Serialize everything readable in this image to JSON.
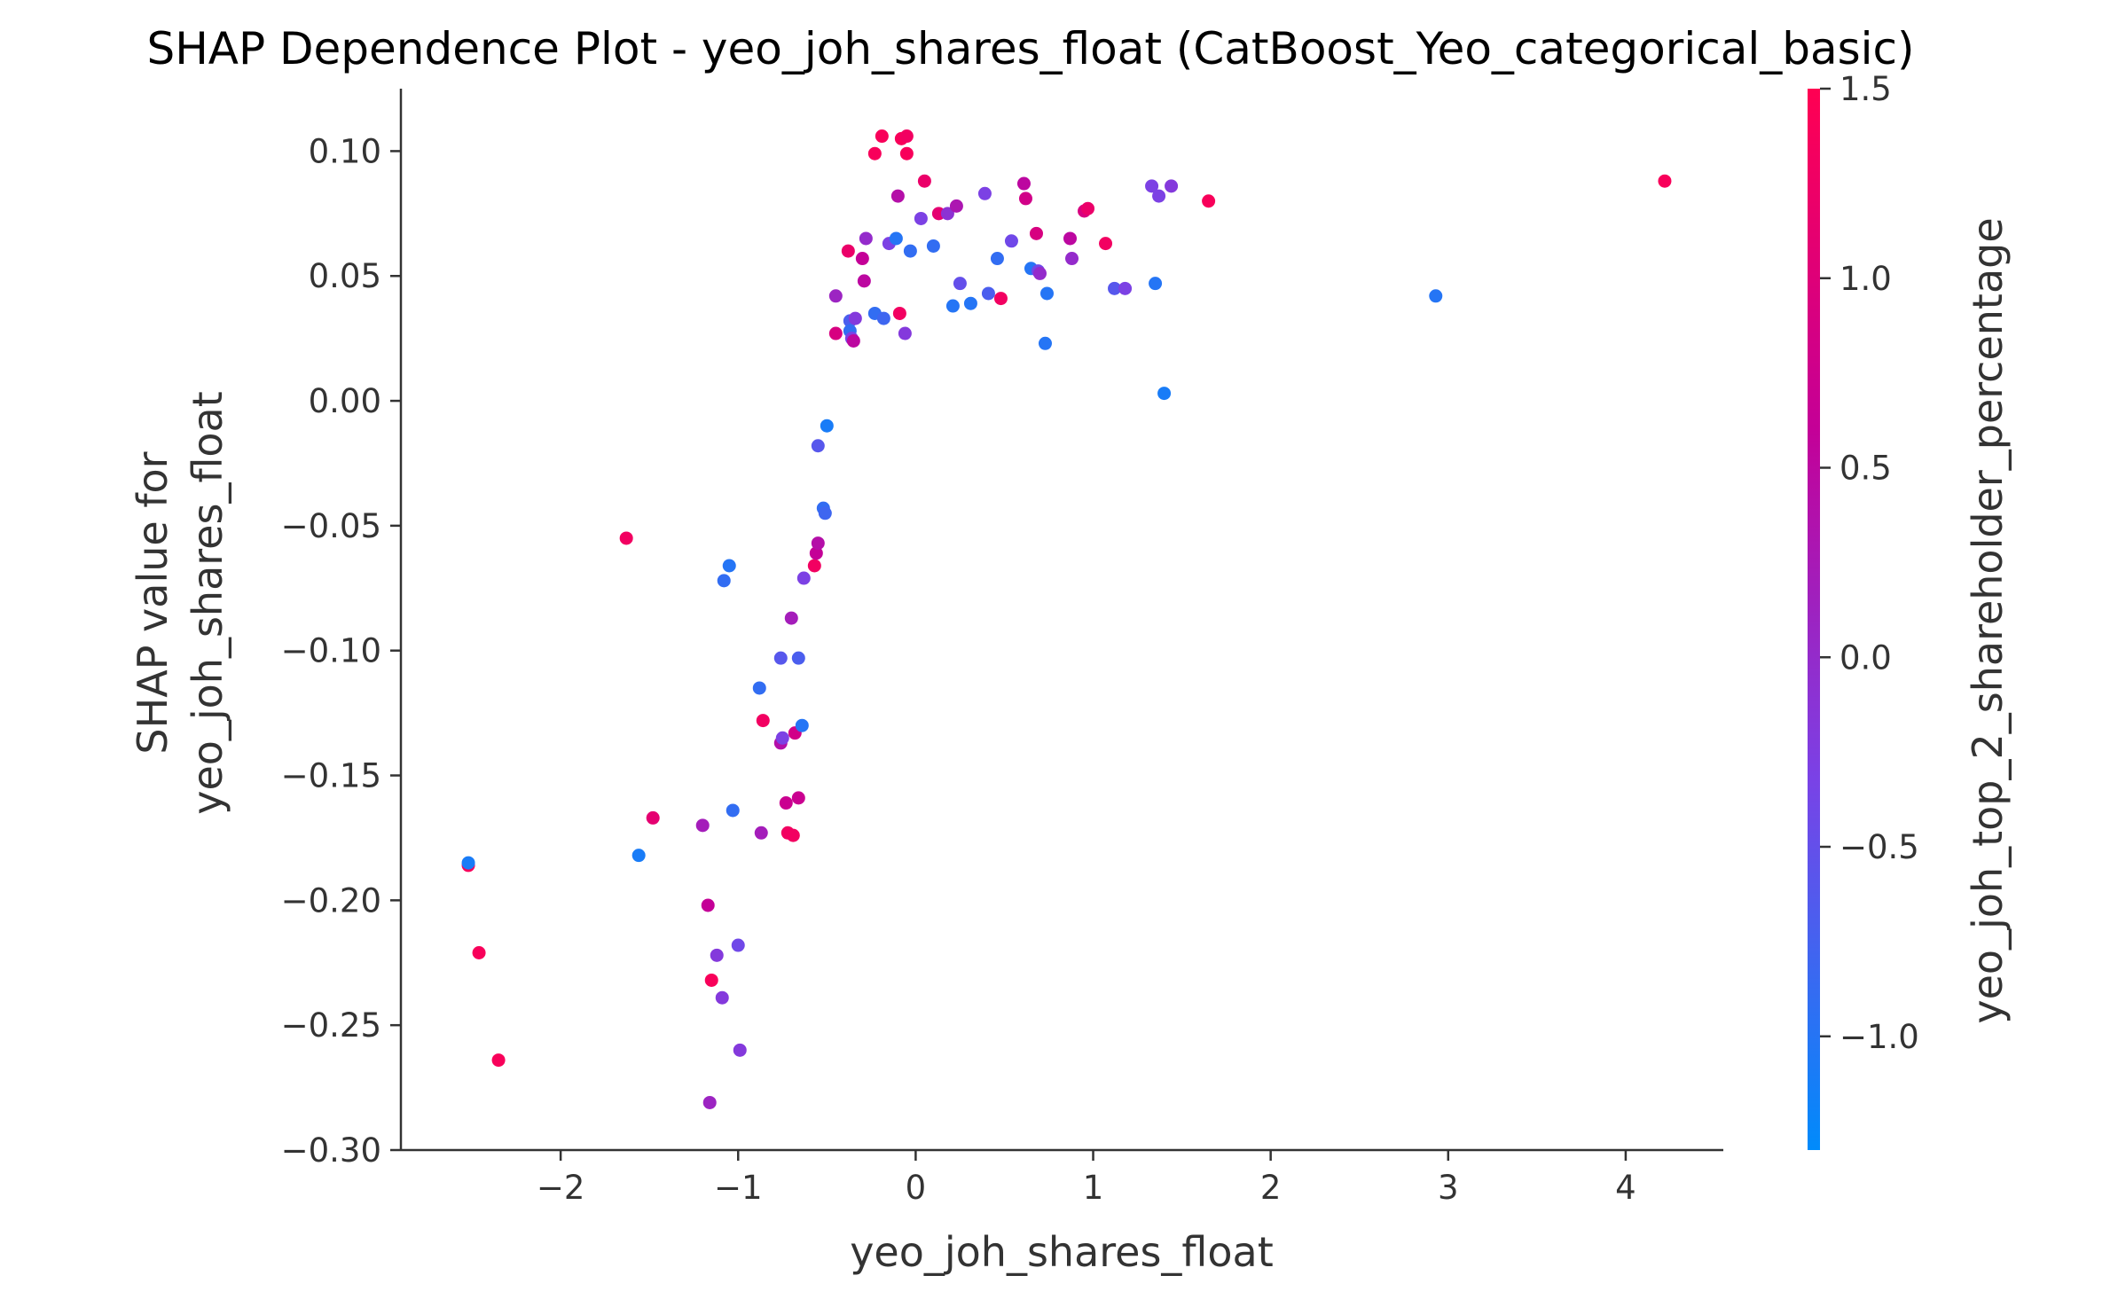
{
  "chart_data": {
    "type": "scatter",
    "title": "SHAP Dependence Plot - yeo_joh_shares_float (CatBoost_Yeo_categorical_basic)",
    "xlabel": "yeo_joh_shares_float",
    "ylabel_lines": [
      "SHAP value for",
      "yeo_joh_shares_float"
    ],
    "xlim": [
      -2.9,
      4.55
    ],
    "ylim": [
      -0.3,
      0.125
    ],
    "xticks": [
      -2,
      -1,
      0,
      1,
      2,
      3,
      4
    ],
    "xtick_labels": [
      "−2",
      "−1",
      "0",
      "1",
      "2",
      "3",
      "4"
    ],
    "yticks": [
      0.1,
      0.05,
      0.0,
      -0.05,
      -0.1,
      -0.15,
      -0.2,
      -0.25,
      -0.3
    ],
    "ytick_labels": [
      "0.10",
      "0.05",
      "0.00",
      "−0.05",
      "−0.10",
      "−0.15",
      "−0.20",
      "−0.25",
      "−0.30"
    ],
    "colorbar": {
      "label": "yeo_joh_top_2_shareholder_percentage",
      "range": [
        -1.3,
        1.5
      ],
      "ticks": [
        1.5,
        1.0,
        0.5,
        0.0,
        -0.5,
        -1.0
      ],
      "tick_labels": [
        "1.5",
        "1.0",
        "0.5",
        "0.0",
        "−0.5",
        "−1.0"
      ],
      "colors": [
        "#008bfb",
        "#7a42e6",
        "#c40097",
        "#ff0052"
      ]
    },
    "grid": false,
    "points": [
      {
        "x": -2.52,
        "y": -0.186,
        "c": 1.4
      },
      {
        "x": -2.52,
        "y": -0.185,
        "c": -1.1
      },
      {
        "x": -2.46,
        "y": -0.221,
        "c": 1.4
      },
      {
        "x": -2.35,
        "y": -0.264,
        "c": 1.4
      },
      {
        "x": -1.63,
        "y": -0.055,
        "c": 1.3
      },
      {
        "x": -1.56,
        "y": -0.182,
        "c": -1.1
      },
      {
        "x": -1.48,
        "y": -0.167,
        "c": 1.1
      },
      {
        "x": -1.2,
        "y": -0.17,
        "c": 0.2
      },
      {
        "x": -1.17,
        "y": -0.202,
        "c": 0.6
      },
      {
        "x": -1.16,
        "y": -0.281,
        "c": 0.1
      },
      {
        "x": -1.15,
        "y": -0.232,
        "c": 1.4
      },
      {
        "x": -1.12,
        "y": -0.222,
        "c": -0.2
      },
      {
        "x": -1.09,
        "y": -0.239,
        "c": -0.2
      },
      {
        "x": -1.08,
        "y": -0.072,
        "c": -0.9
      },
      {
        "x": -1.05,
        "y": -0.066,
        "c": -1.0
      },
      {
        "x": -1.03,
        "y": -0.164,
        "c": -0.9
      },
      {
        "x": -1.0,
        "y": -0.218,
        "c": -0.4
      },
      {
        "x": -0.99,
        "y": -0.26,
        "c": -0.2
      },
      {
        "x": -0.88,
        "y": -0.115,
        "c": -0.9
      },
      {
        "x": -0.87,
        "y": -0.173,
        "c": 0.2
      },
      {
        "x": -0.86,
        "y": -0.128,
        "c": 1.3
      },
      {
        "x": -0.76,
        "y": -0.103,
        "c": -0.6
      },
      {
        "x": -0.76,
        "y": -0.137,
        "c": 0.4
      },
      {
        "x": -0.75,
        "y": -0.135,
        "c": -0.3
      },
      {
        "x": -0.73,
        "y": -0.161,
        "c": 0.7
      },
      {
        "x": -0.72,
        "y": -0.173,
        "c": 1.3
      },
      {
        "x": -0.7,
        "y": -0.087,
        "c": 0.2
      },
      {
        "x": -0.69,
        "y": -0.174,
        "c": 1.3
      },
      {
        "x": -0.68,
        "y": -0.133,
        "c": 0.8
      },
      {
        "x": -0.66,
        "y": -0.103,
        "c": -0.7
      },
      {
        "x": -0.66,
        "y": -0.159,
        "c": 0.7
      },
      {
        "x": -0.64,
        "y": -0.13,
        "c": -1.0
      },
      {
        "x": -0.63,
        "y": -0.071,
        "c": -0.3
      },
      {
        "x": -0.57,
        "y": -0.066,
        "c": 1.3
      },
      {
        "x": -0.56,
        "y": -0.061,
        "c": 0.6
      },
      {
        "x": -0.55,
        "y": -0.057,
        "c": 0.4
      },
      {
        "x": -0.55,
        "y": -0.018,
        "c": -0.6
      },
      {
        "x": -0.52,
        "y": -0.043,
        "c": -0.9
      },
      {
        "x": -0.51,
        "y": -0.045,
        "c": -0.8
      },
      {
        "x": -0.5,
        "y": -0.01,
        "c": -1.1
      },
      {
        "x": -0.45,
        "y": 0.042,
        "c": 0.1
      },
      {
        "x": -0.45,
        "y": 0.027,
        "c": 0.9
      },
      {
        "x": -0.38,
        "y": 0.06,
        "c": 1.2
      },
      {
        "x": -0.37,
        "y": 0.032,
        "c": -0.7
      },
      {
        "x": -0.37,
        "y": 0.028,
        "c": -0.9
      },
      {
        "x": -0.36,
        "y": 0.025,
        "c": -0.3
      },
      {
        "x": -0.35,
        "y": 0.024,
        "c": 0.5
      },
      {
        "x": -0.34,
        "y": 0.033,
        "c": -0.2
      },
      {
        "x": -0.3,
        "y": 0.057,
        "c": 0.6
      },
      {
        "x": -0.29,
        "y": 0.048,
        "c": 0.5
      },
      {
        "x": -0.28,
        "y": 0.065,
        "c": 0.0
      },
      {
        "x": -0.23,
        "y": 0.035,
        "c": -0.9
      },
      {
        "x": -0.23,
        "y": 0.099,
        "c": 1.4
      },
      {
        "x": -0.19,
        "y": 0.106,
        "c": 1.4
      },
      {
        "x": -0.18,
        "y": 0.033,
        "c": -0.8
      },
      {
        "x": -0.15,
        "y": 0.063,
        "c": -0.3
      },
      {
        "x": -0.11,
        "y": 0.065,
        "c": -1.0
      },
      {
        "x": -0.1,
        "y": 0.082,
        "c": 0.4
      },
      {
        "x": -0.09,
        "y": 0.035,
        "c": 1.3
      },
      {
        "x": -0.08,
        "y": 0.105,
        "c": 1.4
      },
      {
        "x": -0.06,
        "y": 0.027,
        "c": -0.2
      },
      {
        "x": -0.05,
        "y": 0.106,
        "c": 1.3
      },
      {
        "x": -0.05,
        "y": 0.099,
        "c": 1.4
      },
      {
        "x": -0.03,
        "y": 0.06,
        "c": -0.9
      },
      {
        "x": 0.03,
        "y": 0.073,
        "c": -0.3
      },
      {
        "x": 0.05,
        "y": 0.088,
        "c": 1.2
      },
      {
        "x": 0.1,
        "y": 0.062,
        "c": -0.9
      },
      {
        "x": 0.13,
        "y": 0.075,
        "c": 1.1
      },
      {
        "x": 0.18,
        "y": 0.075,
        "c": -0.1
      },
      {
        "x": 0.21,
        "y": 0.038,
        "c": -1.0
      },
      {
        "x": 0.23,
        "y": 0.078,
        "c": 0.3
      },
      {
        "x": 0.25,
        "y": 0.047,
        "c": -0.5
      },
      {
        "x": 0.31,
        "y": 0.039,
        "c": -1.0
      },
      {
        "x": 0.39,
        "y": 0.083,
        "c": -0.3
      },
      {
        "x": 0.41,
        "y": 0.043,
        "c": -0.7
      },
      {
        "x": 0.46,
        "y": 0.057,
        "c": -0.9
      },
      {
        "x": 0.48,
        "y": 0.041,
        "c": 1.3
      },
      {
        "x": 0.54,
        "y": 0.064,
        "c": -0.4
      },
      {
        "x": 0.61,
        "y": 0.087,
        "c": 0.5
      },
      {
        "x": 0.62,
        "y": 0.081,
        "c": 0.8
      },
      {
        "x": 0.65,
        "y": 0.053,
        "c": -1.0
      },
      {
        "x": 0.68,
        "y": 0.067,
        "c": 0.9
      },
      {
        "x": 0.69,
        "y": 0.052,
        "c": -0.4
      },
      {
        "x": 0.7,
        "y": 0.051,
        "c": 0.0
      },
      {
        "x": 0.73,
        "y": 0.023,
        "c": -1.0
      },
      {
        "x": 0.74,
        "y": 0.043,
        "c": -1.0
      },
      {
        "x": 0.87,
        "y": 0.065,
        "c": 0.5
      },
      {
        "x": 0.88,
        "y": 0.057,
        "c": 0.0
      },
      {
        "x": 0.95,
        "y": 0.076,
        "c": 0.9
      },
      {
        "x": 0.97,
        "y": 0.077,
        "c": 1.2
      },
      {
        "x": 1.07,
        "y": 0.063,
        "c": 1.3
      },
      {
        "x": 1.12,
        "y": 0.045,
        "c": -0.6
      },
      {
        "x": 1.18,
        "y": 0.045,
        "c": -0.3
      },
      {
        "x": 1.33,
        "y": 0.086,
        "c": -0.3
      },
      {
        "x": 1.35,
        "y": 0.047,
        "c": -1.0
      },
      {
        "x": 1.37,
        "y": 0.082,
        "c": -0.3
      },
      {
        "x": 1.4,
        "y": 0.003,
        "c": -1.1
      },
      {
        "x": 1.44,
        "y": 0.086,
        "c": -0.2
      },
      {
        "x": 1.65,
        "y": 0.08,
        "c": 1.4
      },
      {
        "x": 2.93,
        "y": 0.042,
        "c": -1.0
      },
      {
        "x": 4.22,
        "y": 0.088,
        "c": 1.4
      }
    ]
  }
}
